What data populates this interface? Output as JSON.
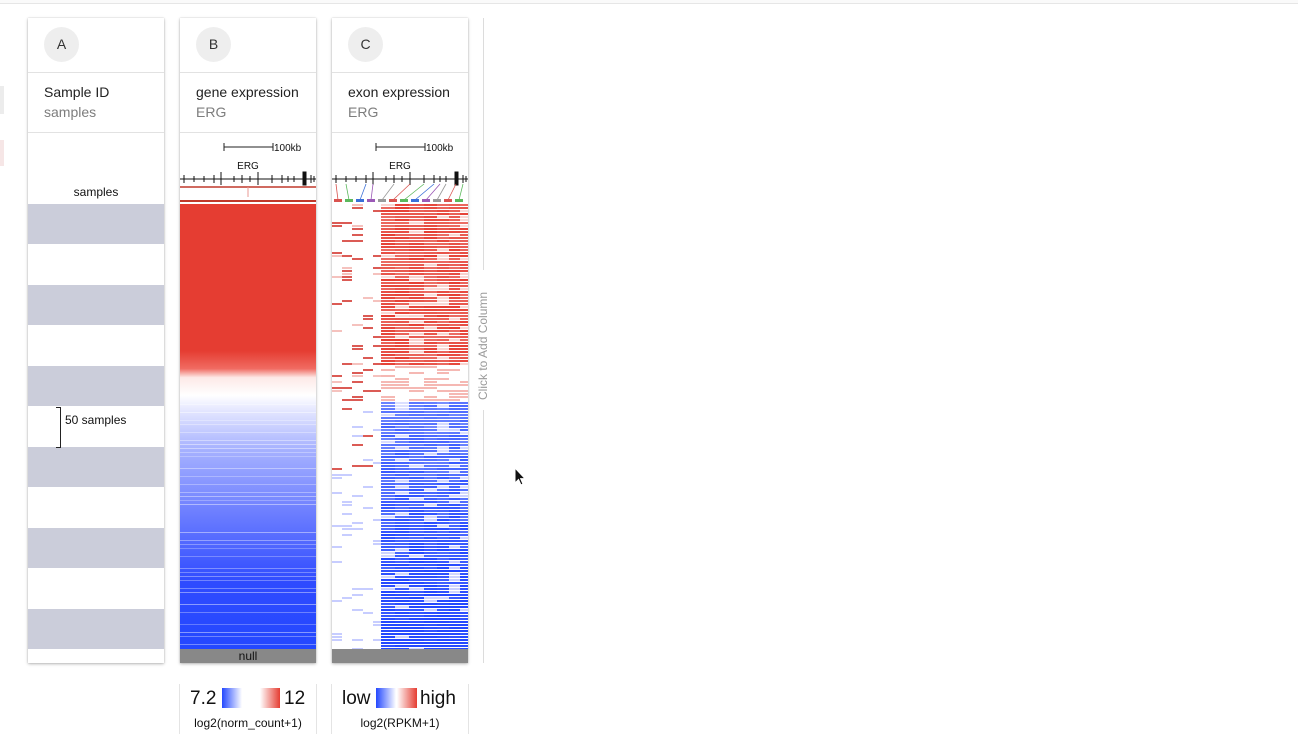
{
  "columns": [
    {
      "id": "A",
      "title": "Sample ID",
      "subtitle": "samples",
      "label": "samples",
      "bracket_label": "50 samples"
    },
    {
      "id": "B",
      "title": "gene expression",
      "subtitle": "ERG",
      "scale_label": "100kb",
      "gene": "ERG",
      "null_label": "null",
      "legend": {
        "min": "7.2",
        "max": "12",
        "caption": "log2(norm_count+1)"
      }
    },
    {
      "id": "C",
      "title": "exon expression",
      "subtitle": "ERG",
      "scale_label": "100kb",
      "gene": "ERG",
      "legend": {
        "min": "low",
        "max": "high",
        "caption": "log2(RPKM+1)"
      }
    }
  ],
  "add_column_label": "Click to Add Column",
  "colors": {
    "high": "#e53d32",
    "low": "#2448ff",
    "band": "#cbcdda",
    "null": "#888888"
  },
  "icons": [
    "mouse-pointer-icon"
  ]
}
